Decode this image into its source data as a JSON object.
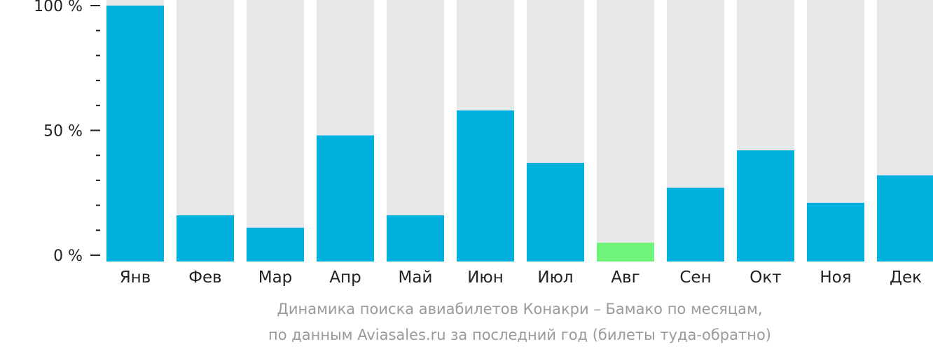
{
  "chart_data": {
    "type": "bar",
    "categories": [
      "Янв",
      "Фев",
      "Мар",
      "Апр",
      "Май",
      "Июн",
      "Июл",
      "Авг",
      "Сен",
      "Окт",
      "Ноя",
      "Дек"
    ],
    "values": [
      100,
      16,
      11,
      48,
      16,
      58,
      37,
      5,
      27,
      42,
      21,
      32
    ],
    "ylim": [
      0,
      100
    ],
    "ytick_labels": [
      "0 %",
      "50 %",
      "100 %"
    ],
    "ytick_values": [
      0,
      50,
      100
    ],
    "minor_tick_step": 10,
    "grid": false,
    "colors": {
      "bar": "#00b0dd",
      "bar_highlight": "#6ff37a",
      "background_bar": "#e8e8ea",
      "axis": "#222222"
    },
    "highlight_index": 7
  },
  "caption": {
    "line1": "Динамика поиска авиабилетов Конакри – Бамако по месяцам,",
    "line2": "по данным Aviasales.ru за последний год (билеты туда-обратно)"
  }
}
